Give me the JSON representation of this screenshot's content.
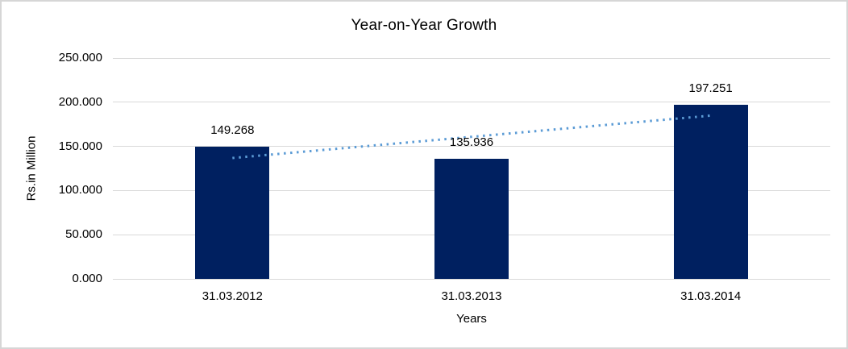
{
  "chart_data": {
    "type": "bar",
    "title": "Year-on-Year Growth",
    "xlabel": "Years",
    "ylabel": "Rs.in Million",
    "categories": [
      "31.03.2012",
      "31.03.2013",
      "31.03.2014"
    ],
    "values": [
      149268,
      135936,
      197251
    ],
    "value_labels": [
      "149.268",
      "135.936",
      "197.251"
    ],
    "y_ticks": [
      {
        "value": 0,
        "label": "0.000"
      },
      {
        "value": 50000,
        "label": "50.000"
      },
      {
        "value": 100000,
        "label": "100.000"
      },
      {
        "value": 150000,
        "label": "150.000"
      },
      {
        "value": 200000,
        "label": "200.000"
      },
      {
        "value": 250000,
        "label": "250.000"
      }
    ],
    "ylim": [
      0,
      250000
    ],
    "grid": "horizontal",
    "legend": "none",
    "bar_color": "#002060",
    "gridline_color": "#d9d9d9",
    "text_color": "#000000",
    "frame_border_color": "#d6d6d6",
    "trendline": {
      "type": "linear",
      "style": "dotted",
      "color": "#5b9bd5"
    }
  }
}
